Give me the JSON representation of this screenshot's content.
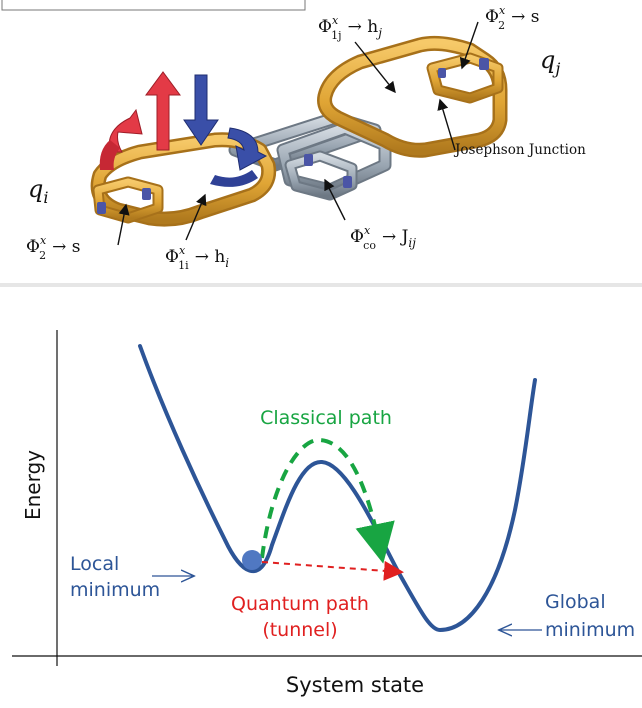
{
  "qubit_diagram": {
    "qubit_i": "q",
    "qubit_i_sub": "i",
    "qubit_j": "q",
    "qubit_j_sub": "j",
    "phi_1j": {
      "base": "Φ",
      "sup": "x",
      "sub": "1j",
      "arrow": "→ h",
      "target_sub": "j"
    },
    "phi_2_top": {
      "base": "Φ",
      "sup": "x",
      "sub": "2",
      "arrow": "→ s"
    },
    "josephson": "Josephson Junction",
    "phi_co": {
      "base": "Φ",
      "sup": "x",
      "sub": "co",
      "arrow": "→ J",
      "target_sub": "ij"
    },
    "phi_2_left": {
      "base": "Φ",
      "sup": "x",
      "sub": "2",
      "arrow": "→ s"
    },
    "phi_1i": {
      "base": "Φ",
      "sup": "x",
      "sub": "1i",
      "arrow": "→ h",
      "target_sub": "i"
    }
  },
  "landscape": {
    "y_axis_label": "Energy",
    "x_axis_label": "System state",
    "classical_path": "Classical path",
    "quantum_path_line1": "Quantum path",
    "quantum_path_line2": "(tunnel)",
    "local_min_line1": "Local",
    "local_min_line2": "minimum",
    "global_min_line1": "Global",
    "global_min_line2": "minimum"
  },
  "colors": {
    "curve": "#2d5597",
    "classical": "#18a542",
    "quantum": "#e02020",
    "label_blue": "#2d5597",
    "gold": "#e0a535",
    "steel": "#9aa6b2",
    "red_arrow": "#e33a46",
    "blue_arrow": "#3a4fa8"
  }
}
